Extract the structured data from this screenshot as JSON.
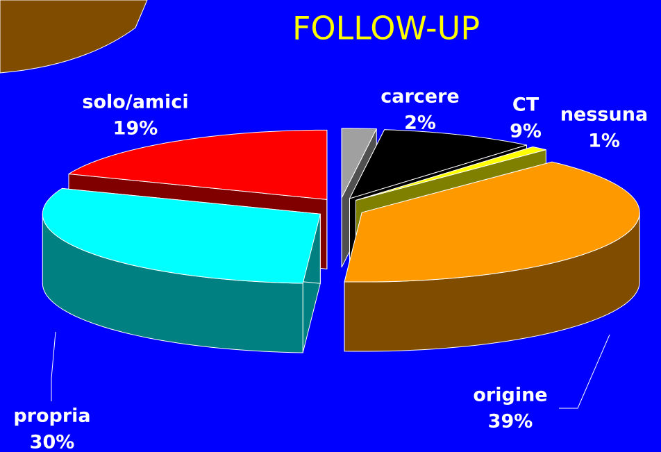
{
  "chart_data": {
    "type": "pie3d",
    "title": "FOLLOW-UP",
    "categories": [
      "carcere",
      "CT",
      "nessuna",
      "origine",
      "propria",
      "solo/amici"
    ],
    "values": [
      2,
      9,
      1,
      39,
      30,
      19
    ],
    "value_labels": [
      "2%",
      "9%",
      "1%",
      "39%",
      "30%",
      "19%"
    ],
    "colors": [
      "#a0a0a0",
      "#000000",
      "#ffff00",
      "#ff9900",
      "#00ffff",
      "#ff0000"
    ]
  }
}
